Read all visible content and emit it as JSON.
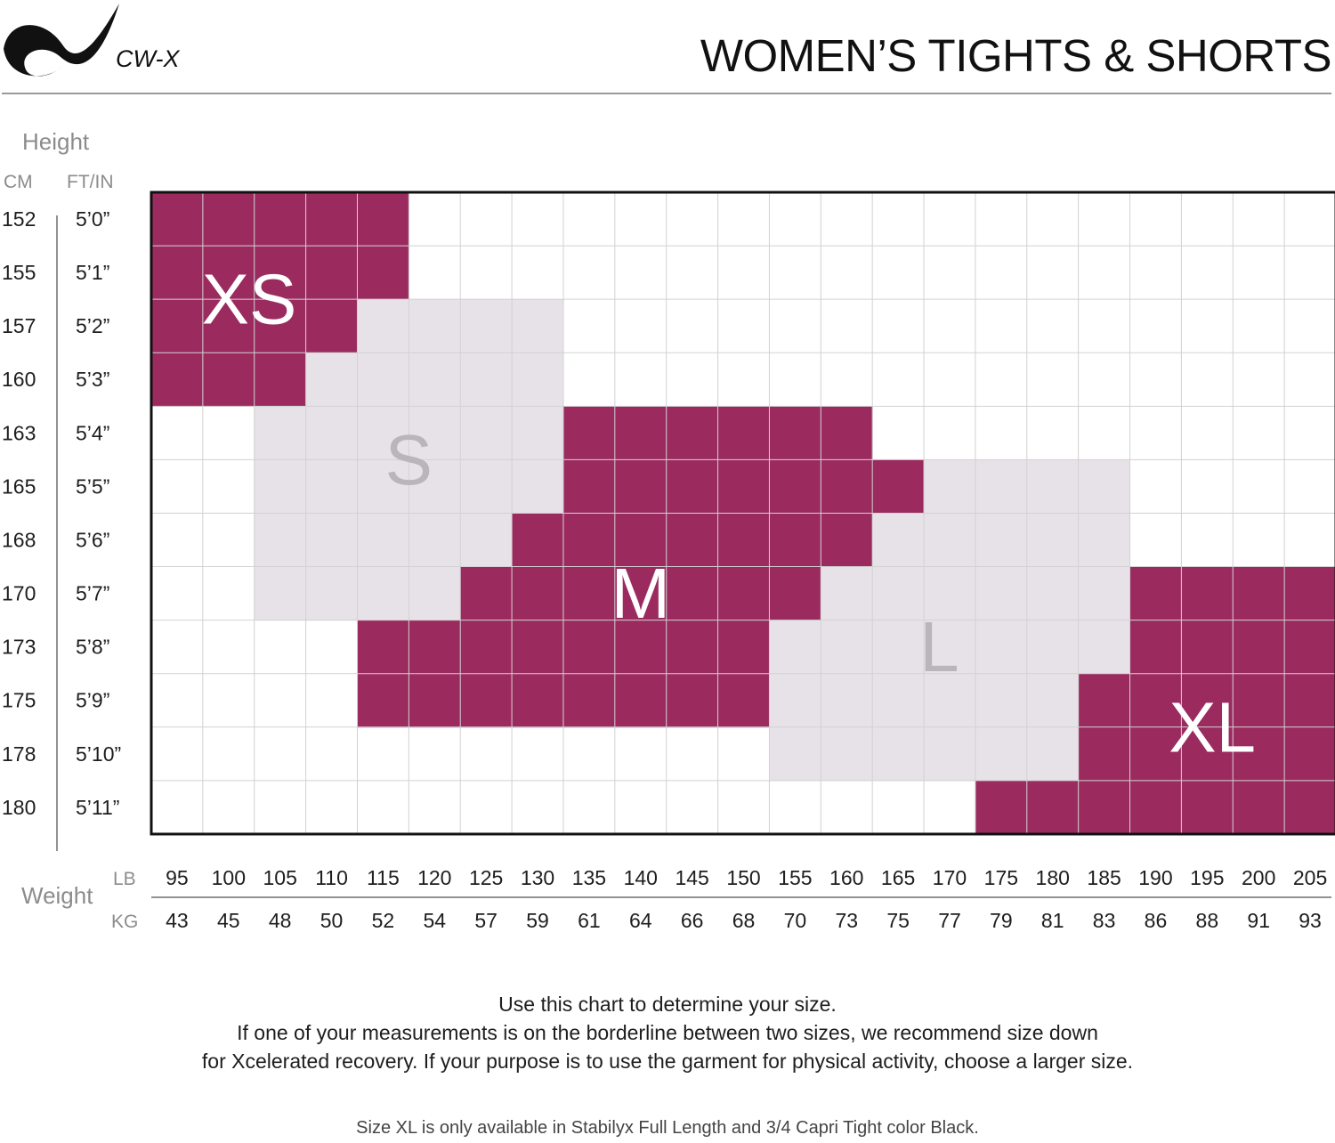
{
  "brand": {
    "name": "CW-X",
    "logo_icon": "cw-x-swoosh-logo"
  },
  "header": {
    "title": "WOMEN’S TIGHTS & SHORTS"
  },
  "chart_data": {
    "type": "heatmap",
    "title": "WOMEN’S TIGHTS & SHORTS",
    "y_axis": {
      "label": "Height",
      "unit_labels": [
        "CM",
        "FT/IN"
      ],
      "cm": [
        "152",
        "155",
        "157",
        "160",
        "163",
        "165",
        "168",
        "170",
        "173",
        "175",
        "178",
        "180"
      ],
      "ft_in": [
        "5’0”",
        "5’1”",
        "5’2”",
        "5’3”",
        "5’4”",
        "5’5”",
        "5’6”",
        "5’7”",
        "5’8”",
        "5’9”",
        "5’10”",
        "5’11”"
      ]
    },
    "x_axis": {
      "label": "Weight",
      "unit_labels": [
        "LB",
        "KG"
      ],
      "lb": [
        "95",
        "100",
        "105",
        "110",
        "115",
        "120",
        "125",
        "130",
        "135",
        "140",
        "145",
        "150",
        "155",
        "160",
        "165",
        "170",
        "175",
        "180",
        "185",
        "190",
        "195",
        "200",
        "205"
      ],
      "kg": [
        "43",
        "45",
        "48",
        "50",
        "52",
        "54",
        "57",
        "59",
        "61",
        "64",
        "66",
        "68",
        "70",
        "73",
        "75",
        "77",
        "79",
        "81",
        "83",
        "86",
        "88",
        "91",
        "93"
      ]
    },
    "sizes": [
      {
        "label": "XS",
        "style": "primary",
        "cells": [
          {
            "cm": 152,
            "lb_from": 95,
            "lb_to": 115
          },
          {
            "cm": 155,
            "lb_from": 95,
            "lb_to": 115
          },
          {
            "cm": 157,
            "lb_from": 95,
            "lb_to": 110
          },
          {
            "cm": 160,
            "lb_from": 95,
            "lb_to": 105
          }
        ]
      },
      {
        "label": "S",
        "style": "secondary",
        "cells": [
          {
            "cm": 157,
            "lb_from": 115,
            "lb_to": 130
          },
          {
            "cm": 160,
            "lb_from": 110,
            "lb_to": 130
          },
          {
            "cm": 163,
            "lb_from": 105,
            "lb_to": 130
          },
          {
            "cm": 165,
            "lb_from": 105,
            "lb_to": 130
          },
          {
            "cm": 168,
            "lb_from": 105,
            "lb_to": 125
          },
          {
            "cm": 170,
            "lb_from": 105,
            "lb_to": 120
          }
        ]
      },
      {
        "label": "M",
        "style": "primary",
        "cells": [
          {
            "cm": 163,
            "lb_from": 135,
            "lb_to": 160
          },
          {
            "cm": 165,
            "lb_from": 135,
            "lb_to": 165
          },
          {
            "cm": 168,
            "lb_from": 130,
            "lb_to": 160
          },
          {
            "cm": 170,
            "lb_from": 125,
            "lb_to": 155
          },
          {
            "cm": 173,
            "lb_from": 115,
            "lb_to": 150
          },
          {
            "cm": 175,
            "lb_from": 115,
            "lb_to": 150
          }
        ]
      },
      {
        "label": "L",
        "style": "secondary",
        "cells": [
          {
            "cm": 165,
            "lb_from": 170,
            "lb_to": 185
          },
          {
            "cm": 168,
            "lb_from": 165,
            "lb_to": 185
          },
          {
            "cm": 170,
            "lb_from": 160,
            "lb_to": 185
          },
          {
            "cm": 173,
            "lb_from": 155,
            "lb_to": 185
          },
          {
            "cm": 175,
            "lb_from": 155,
            "lb_to": 180
          },
          {
            "cm": 178,
            "lb_from": 155,
            "lb_to": 180
          }
        ]
      },
      {
        "label": "XL",
        "style": "primary",
        "cells": [
          {
            "cm": 170,
            "lb_from": 190,
            "lb_to": 205
          },
          {
            "cm": 173,
            "lb_from": 190,
            "lb_to": 205
          },
          {
            "cm": 175,
            "lb_from": 185,
            "lb_to": 205
          },
          {
            "cm": 178,
            "lb_from": 185,
            "lb_to": 205
          },
          {
            "cm": 180,
            "lb_from": 175,
            "lb_to": 205
          }
        ]
      }
    ],
    "colors": {
      "primary": "#9b2b5f",
      "secondary": "#e7e2e7",
      "primary_label": "#ffffff",
      "secondary_label": "#b9b5b9",
      "grid": "#d2d2d2",
      "frame": "#111111"
    },
    "grid": true
  },
  "notes": {
    "line1": "Use this chart to determine your size.",
    "line2": "If one of your measurements is on the borderline between two sizes, we recommend size down",
    "line3": "for Xcelerated recovery. If your purpose is to use the garment for physical activity, choose a larger size."
  },
  "availability_note": "Size XL is only available in Stabilyx Full Length and 3/4 Capri Tight color Black."
}
